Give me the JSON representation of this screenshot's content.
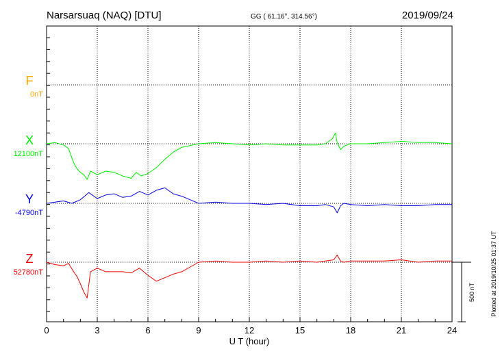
{
  "header": {
    "station": "Narsarsuaq (NAQ)  [DTU]",
    "coords": "GG ( 61.16°, 314.56°)",
    "date": "2019/09/24"
  },
  "plotted_note": "Plotted at 2019/10/25 01:37 UT",
  "scale_bar_label": "500 nT",
  "colors": {
    "F": "#ffa500",
    "X": "#00ee00",
    "Y": "#0000dd",
    "Z": "#ee0000"
  },
  "chart_data": {
    "type": "line",
    "title": "Narsarsuaq (NAQ)  [DTU]",
    "xlabel": "U T (hour)",
    "ylabel": "",
    "xlim": [
      0,
      24
    ],
    "x_ticks": [
      0,
      3,
      6,
      9,
      12,
      15,
      18,
      21,
      24
    ],
    "x_tick_labels": [
      "0",
      "3",
      "6",
      "9",
      "12",
      "15",
      "18",
      "21",
      "24"
    ],
    "grid": true,
    "scale_bar_nT": 500,
    "series": [
      {
        "name": "F",
        "baseline_label": "0nT",
        "baseline_nT": 0,
        "x": [],
        "values": []
      },
      {
        "name": "X",
        "baseline_label": "12100nT",
        "baseline_nT": 12100,
        "x": [
          0,
          0.5,
          1,
          1.3,
          1.6,
          1.8,
          2.0,
          2.2,
          2.4,
          2.6,
          3.0,
          3.5,
          4.0,
          4.5,
          5.0,
          5.3,
          5.6,
          6.0,
          6.5,
          7.0,
          7.5,
          8.0,
          9.0,
          10,
          11,
          12,
          13,
          14,
          15,
          16,
          16.5,
          16.9,
          17.1,
          17.2,
          17.4,
          17.6,
          17.8,
          18,
          19,
          20,
          21,
          22,
          23,
          24
        ],
        "values": [
          12100,
          12110,
          12090,
          12060,
          11940,
          11890,
          11860,
          11840,
          11800,
          11870,
          11840,
          11870,
          11860,
          11830,
          11810,
          11860,
          11830,
          11850,
          11900,
          11970,
          12030,
          12070,
          12100,
          12110,
          12100,
          12090,
          12100,
          12090,
          12090,
          12090,
          12100,
          12140,
          12190,
          12110,
          12050,
          12080,
          12090,
          12100,
          12100,
          12110,
          12120,
          12110,
          12110,
          12100
        ]
      },
      {
        "name": "Y",
        "baseline_label": "-4790nT",
        "baseline_nT": -4790,
        "x": [
          0,
          0.5,
          1,
          1.5,
          2,
          2.5,
          3,
          3.5,
          4,
          4.5,
          5,
          5.5,
          6,
          6.5,
          7,
          7.5,
          8,
          8.5,
          9,
          10,
          11,
          12,
          13,
          14,
          15,
          16,
          16.5,
          17,
          17.2,
          17.4,
          17.6,
          18,
          19,
          20,
          21,
          22,
          23,
          24
        ],
        "values": [
          -4790,
          -4780,
          -4770,
          -4790,
          -4760,
          -4700,
          -4750,
          -4720,
          -4710,
          -4740,
          -4730,
          -4690,
          -4720,
          -4680,
          -4660,
          -4710,
          -4730,
          -4760,
          -4790,
          -4780,
          -4790,
          -4790,
          -4800,
          -4790,
          -4810,
          -4810,
          -4800,
          -4820,
          -4870,
          -4810,
          -4790,
          -4800,
          -4810,
          -4800,
          -4810,
          -4810,
          -4800,
          -4800
        ]
      },
      {
        "name": "Z",
        "baseline_label": "52780nT",
        "baseline_nT": 52780,
        "x": [
          0,
          0.5,
          1,
          1.3,
          1.6,
          1.8,
          2.0,
          2.2,
          2.4,
          2.6,
          3.0,
          3.5,
          4.0,
          4.5,
          5.0,
          5.5,
          6.0,
          6.5,
          7.0,
          7.5,
          8.0,
          8.5,
          9.0,
          10,
          11,
          12,
          13,
          14,
          15,
          16,
          16.5,
          17,
          17.2,
          17.4,
          17.6,
          18,
          19,
          20,
          21,
          22,
          23,
          24
        ],
        "values": [
          52780,
          52760,
          52750,
          52770,
          52700,
          52660,
          52600,
          52530,
          52480,
          52700,
          52730,
          52700,
          52700,
          52700,
          52690,
          52730,
          52670,
          52620,
          52650,
          52680,
          52700,
          52740,
          52780,
          52790,
          52780,
          52780,
          52790,
          52780,
          52790,
          52780,
          52790,
          52800,
          52840,
          52790,
          52780,
          52790,
          52790,
          52790,
          52800,
          52780,
          52790,
          52790
        ]
      }
    ]
  }
}
